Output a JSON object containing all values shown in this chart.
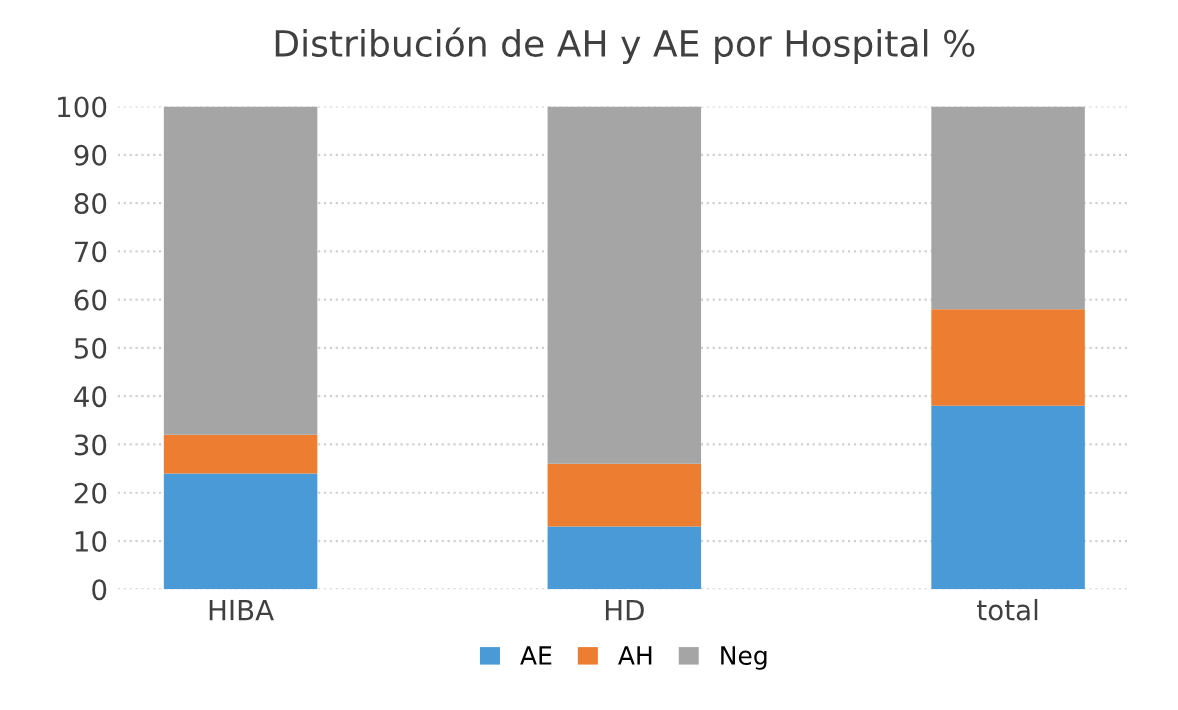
{
  "chart_data": {
    "type": "bar",
    "title": "Distribución de AH y AE por Hospital %",
    "categories": [
      "HIBA",
      "HD",
      "total"
    ],
    "stacked": true,
    "series": [
      {
        "name": "AE",
        "color": "#4a9ad8",
        "values": [
          24,
          13,
          38
        ]
      },
      {
        "name": "AH",
        "color": "#ed7d31",
        "values": [
          8,
          13,
          20
        ]
      },
      {
        "name": "Neg",
        "color": "#a5a5a5",
        "values": [
          68,
          74,
          42
        ]
      }
    ],
    "ylim": [
      0,
      100
    ],
    "yticks": [
      0,
      10,
      20,
      30,
      40,
      50,
      60,
      70,
      80,
      90,
      100
    ],
    "grid": "y",
    "legend": "bottom"
  }
}
